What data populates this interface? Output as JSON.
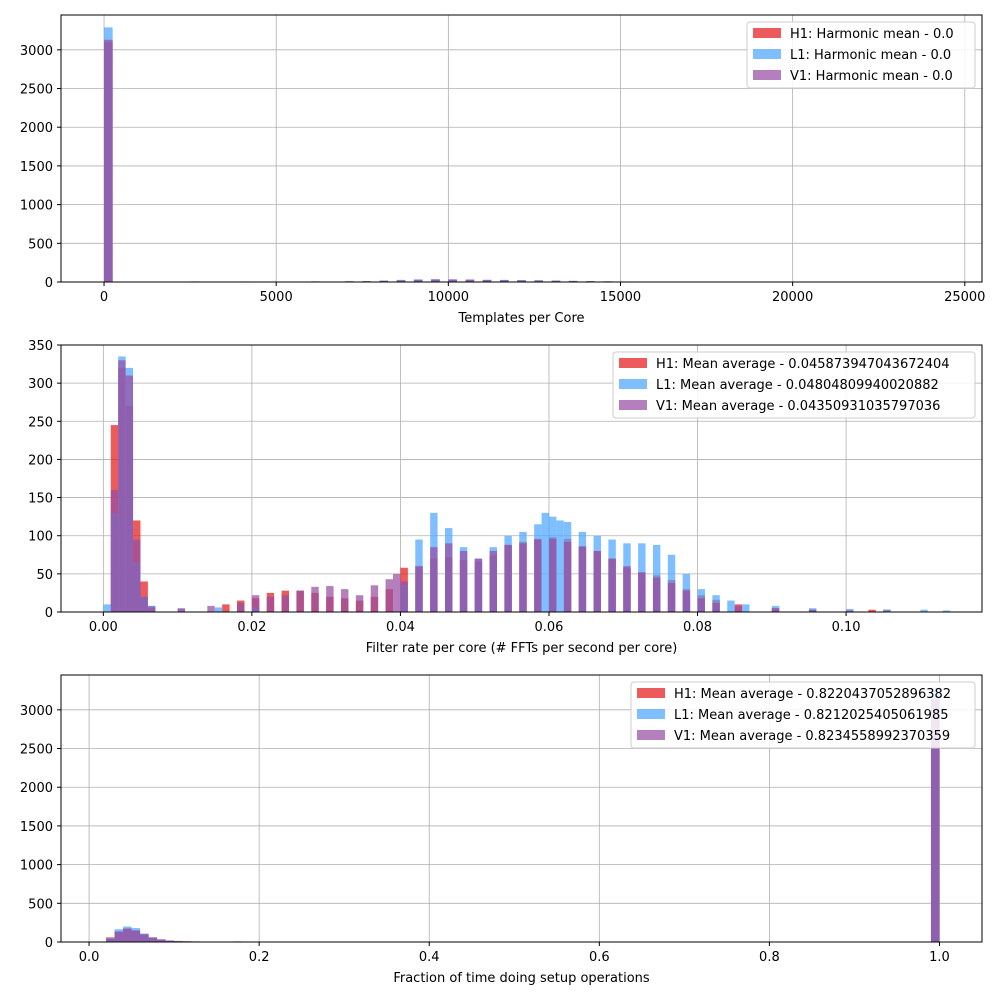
{
  "colors": {
    "H1": "#e41a1c",
    "L1": "#4da6ff",
    "V1": "#984ea3",
    "grid": "#b0b0b0",
    "axes": "#000000"
  },
  "chart_data": [
    {
      "type": "histogram",
      "xlabel": "Templates per Core",
      "ylabel": "",
      "xlim": [
        -1250,
        25500
      ],
      "ylim": [
        0,
        3450
      ],
      "xticks": [
        0,
        5000,
        10000,
        15000,
        20000,
        25000
      ],
      "yticks": [
        0,
        500,
        1000,
        1500,
        2000,
        2500,
        3000
      ],
      "grid": true,
      "legend_position": "upper right",
      "bin_width": 250,
      "series": [
        {
          "name": "H1: Harmonic mean  - 0.0",
          "key": "H1",
          "bins": [
            [
              0,
              3100
            ],
            [
              2500,
              8
            ],
            [
              3000,
              5
            ],
            [
              3500,
              6
            ],
            [
              4000,
              7
            ],
            [
              5000,
              5
            ],
            [
              6000,
              8
            ],
            [
              7000,
              10
            ],
            [
              7500,
              12
            ],
            [
              8000,
              15
            ],
            [
              8500,
              20
            ],
            [
              9000,
              25
            ],
            [
              9500,
              28
            ],
            [
              10000,
              30
            ],
            [
              10500,
              28
            ],
            [
              11000,
              26
            ],
            [
              11500,
              24
            ],
            [
              12000,
              22
            ],
            [
              12500,
              20
            ],
            [
              13000,
              18
            ],
            [
              13500,
              14
            ],
            [
              14000,
              10
            ],
            [
              14500,
              8
            ],
            [
              15000,
              6
            ],
            [
              15500,
              5
            ],
            [
              16000,
              4
            ],
            [
              17500,
              5
            ]
          ]
        },
        {
          "name": "L1: Harmonic mean  - 0.0",
          "key": "L1",
          "bins": [
            [
              0,
              3290
            ],
            [
              7500,
              12
            ],
            [
              8000,
              20
            ],
            [
              8500,
              28
            ],
            [
              9000,
              35
            ],
            [
              9500,
              38
            ],
            [
              10000,
              36
            ],
            [
              10500,
              34
            ],
            [
              11000,
              30
            ],
            [
              11500,
              28
            ],
            [
              12000,
              26
            ],
            [
              12500,
              24
            ],
            [
              13000,
              20
            ],
            [
              13500,
              15
            ],
            [
              14000,
              12
            ],
            [
              14500,
              9
            ],
            [
              15000,
              7
            ],
            [
              15500,
              5
            ],
            [
              16000,
              4
            ]
          ]
        },
        {
          "name": "V1: Harmonic mean  - 0.0",
          "key": "V1",
          "bins": [
            [
              0,
              3130
            ],
            [
              3000,
              4
            ],
            [
              4000,
              5
            ],
            [
              5000,
              6
            ],
            [
              6000,
              7
            ],
            [
              7000,
              8
            ],
            [
              8000,
              15
            ],
            [
              8500,
              22
            ],
            [
              9000,
              28
            ],
            [
              9500,
              32
            ],
            [
              10000,
              30
            ],
            [
              10500,
              28
            ],
            [
              11000,
              25
            ],
            [
              11500,
              22
            ],
            [
              12000,
              20
            ],
            [
              12500,
              18
            ],
            [
              13000,
              15
            ],
            [
              13500,
              12
            ],
            [
              14000,
              9
            ],
            [
              14500,
              7
            ],
            [
              15000,
              5
            ],
            [
              16000,
              4
            ]
          ]
        }
      ]
    },
    {
      "type": "histogram",
      "xlabel": "Filter rate per core (# FFTs per second per core)",
      "ylabel": "",
      "xlim": [
        -0.0057,
        0.1183
      ],
      "ylim": [
        0,
        350
      ],
      "xticks": [
        0.0,
        0.02,
        0.04,
        0.06,
        0.08,
        0.1
      ],
      "yticks": [
        0,
        50,
        100,
        150,
        200,
        250,
        300,
        350
      ],
      "grid": true,
      "legend_position": "upper right",
      "bin_width": 0.001,
      "series": [
        {
          "name": "H1: Mean average - 0.045873947043672404",
          "key": "H1",
          "bins": [
            [
              0.001,
              245
            ],
            [
              0.002,
              320
            ],
            [
              0.003,
              270
            ],
            [
              0.004,
              120
            ],
            [
              0.005,
              40
            ],
            [
              0.006,
              8
            ],
            [
              0.016,
              10
            ],
            [
              0.018,
              15
            ],
            [
              0.02,
              18
            ],
            [
              0.022,
              25
            ],
            [
              0.024,
              28
            ],
            [
              0.026,
              28
            ],
            [
              0.028,
              25
            ],
            [
              0.03,
              20
            ],
            [
              0.032,
              18
            ],
            [
              0.034,
              15
            ],
            [
              0.036,
              20
            ],
            [
              0.038,
              30
            ],
            [
              0.04,
              58
            ],
            [
              0.042,
              60
            ],
            [
              0.044,
              70
            ],
            [
              0.046,
              72
            ],
            [
              0.048,
              68
            ],
            [
              0.05,
              66
            ],
            [
              0.052,
              74
            ],
            [
              0.054,
              88
            ],
            [
              0.056,
              92
            ],
            [
              0.058,
              96
            ],
            [
              0.06,
              98
            ],
            [
              0.062,
              96
            ],
            [
              0.064,
              86
            ],
            [
              0.066,
              80
            ],
            [
              0.068,
              70
            ],
            [
              0.07,
              58
            ],
            [
              0.072,
              52
            ],
            [
              0.074,
              48
            ],
            [
              0.076,
              42
            ],
            [
              0.078,
              30
            ],
            [
              0.08,
              22
            ],
            [
              0.082,
              16
            ],
            [
              0.085,
              10
            ],
            [
              0.09,
              5
            ],
            [
              0.095,
              3
            ],
            [
              0.103,
              3
            ],
            [
              0.105,
              3
            ]
          ]
        },
        {
          "name": "L1: Mean average - 0.04804809940020882",
          "key": "L1",
          "bins": [
            [
              0.0,
              10
            ],
            [
              0.001,
              130
            ],
            [
              0.002,
              335
            ],
            [
              0.003,
              320
            ],
            [
              0.004,
              65
            ],
            [
              0.005,
              20
            ],
            [
              0.006,
              8
            ],
            [
              0.01,
              4
            ],
            [
              0.015,
              6
            ],
            [
              0.02,
              6
            ],
            [
              0.04,
              35
            ],
            [
              0.042,
              95
            ],
            [
              0.044,
              130
            ],
            [
              0.046,
              110
            ],
            [
              0.048,
              85
            ],
            [
              0.05,
              70
            ],
            [
              0.052,
              85
            ],
            [
              0.054,
              100
            ],
            [
              0.056,
              105
            ],
            [
              0.058,
              115
            ],
            [
              0.059,
              130
            ],
            [
              0.06,
              125
            ],
            [
              0.061,
              120
            ],
            [
              0.062,
              118
            ],
            [
              0.064,
              105
            ],
            [
              0.066,
              100
            ],
            [
              0.068,
              95
            ],
            [
              0.07,
              90
            ],
            [
              0.072,
              90
            ],
            [
              0.074,
              88
            ],
            [
              0.076,
              75
            ],
            [
              0.078,
              50
            ],
            [
              0.08,
              30
            ],
            [
              0.082,
              22
            ],
            [
              0.084,
              15
            ],
            [
              0.086,
              10
            ],
            [
              0.09,
              8
            ],
            [
              0.095,
              5
            ],
            [
              0.1,
              4
            ],
            [
              0.105,
              3
            ],
            [
              0.11,
              3
            ],
            [
              0.113,
              2
            ]
          ]
        },
        {
          "name": "V1: Mean average - 0.04350931035797036",
          "key": "V1",
          "bins": [
            [
              0.001,
              160
            ],
            [
              0.002,
              330
            ],
            [
              0.003,
              310
            ],
            [
              0.004,
              95
            ],
            [
              0.005,
              20
            ],
            [
              0.006,
              6
            ],
            [
              0.01,
              5
            ],
            [
              0.014,
              8
            ],
            [
              0.018,
              12
            ],
            [
              0.02,
              22
            ],
            [
              0.022,
              20
            ],
            [
              0.024,
              22
            ],
            [
              0.026,
              28
            ],
            [
              0.028,
              33
            ],
            [
              0.03,
              34
            ],
            [
              0.032,
              30
            ],
            [
              0.034,
              22
            ],
            [
              0.036,
              35
            ],
            [
              0.038,
              43
            ],
            [
              0.039,
              50
            ],
            [
              0.04,
              40
            ],
            [
              0.042,
              60
            ],
            [
              0.044,
              85
            ],
            [
              0.046,
              90
            ],
            [
              0.048,
              80
            ],
            [
              0.05,
              70
            ],
            [
              0.052,
              80
            ],
            [
              0.054,
              88
            ],
            [
              0.056,
              90
            ],
            [
              0.058,
              95
            ],
            [
              0.06,
              96
            ],
            [
              0.062,
              92
            ],
            [
              0.064,
              86
            ],
            [
              0.066,
              80
            ],
            [
              0.068,
              70
            ],
            [
              0.07,
              60
            ],
            [
              0.072,
              52
            ],
            [
              0.074,
              45
            ],
            [
              0.076,
              38
            ],
            [
              0.078,
              28
            ],
            [
              0.08,
              18
            ],
            [
              0.082,
              12
            ],
            [
              0.085,
              8
            ],
            [
              0.09,
              5
            ],
            [
              0.095,
              3
            ],
            [
              0.1,
              2
            ]
          ]
        }
      ]
    },
    {
      "type": "histogram",
      "xlabel": "Fraction of time doing setup operations",
      "ylabel": "",
      "xlim": [
        -0.033,
        1.05
      ],
      "ylim": [
        0,
        3450
      ],
      "xticks": [
        0.0,
        0.2,
        0.4,
        0.6,
        0.8,
        1.0
      ],
      "yticks": [
        0,
        500,
        1000,
        1500,
        2000,
        2500,
        3000
      ],
      "grid": true,
      "legend_position": "upper right",
      "bin_width": 0.01,
      "series": [
        {
          "name": "H1: Mean average - 0.8220437052896382",
          "key": "H1",
          "bins": [
            [
              0.02,
              60
            ],
            [
              0.03,
              140
            ],
            [
              0.04,
              170
            ],
            [
              0.05,
              150
            ],
            [
              0.06,
              100
            ],
            [
              0.07,
              60
            ],
            [
              0.08,
              35
            ],
            [
              0.09,
              20
            ],
            [
              0.1,
              14
            ],
            [
              0.11,
              10
            ],
            [
              0.12,
              8
            ],
            [
              0.13,
              5
            ],
            [
              0.14,
              4
            ],
            [
              0.17,
              8
            ],
            [
              0.99,
              3140
            ]
          ]
        },
        {
          "name": "L1: Mean average - 0.8212025405061985",
          "key": "L1",
          "bins": [
            [
              0.02,
              50
            ],
            [
              0.03,
              165
            ],
            [
              0.04,
              200
            ],
            [
              0.05,
              180
            ],
            [
              0.06,
              110
            ],
            [
              0.07,
              60
            ],
            [
              0.08,
              30
            ],
            [
              0.09,
              18
            ],
            [
              0.1,
              12
            ],
            [
              0.11,
              8
            ],
            [
              0.12,
              6
            ],
            [
              0.13,
              4
            ],
            [
              0.99,
              3290
            ]
          ]
        },
        {
          "name": "V1: Mean average - 0.8234558992370359",
          "key": "V1",
          "bins": [
            [
              0.02,
              40
            ],
            [
              0.03,
              130
            ],
            [
              0.04,
              175
            ],
            [
              0.05,
              150
            ],
            [
              0.06,
              100
            ],
            [
              0.07,
              55
            ],
            [
              0.08,
              28
            ],
            [
              0.09,
              16
            ],
            [
              0.1,
              10
            ],
            [
              0.11,
              7
            ],
            [
              0.12,
              5
            ],
            [
              0.13,
              3
            ],
            [
              0.99,
              3130
            ]
          ]
        }
      ]
    }
  ]
}
